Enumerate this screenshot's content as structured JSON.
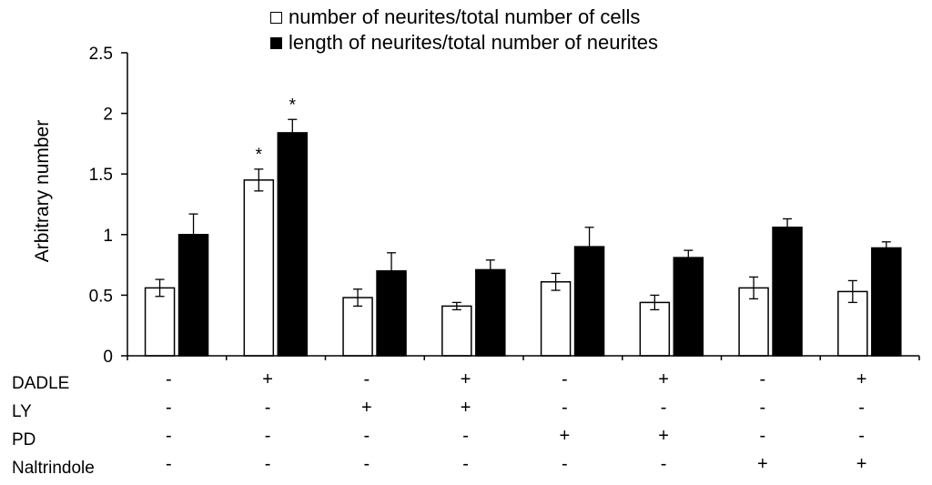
{
  "chart_data": {
    "type": "bar",
    "ylabel": "Arbitrary number",
    "ylim": [
      0,
      2.5
    ],
    "yticks": [
      "0",
      "0.5",
      "1",
      "1.5",
      "2",
      "2.5"
    ],
    "ytick_values": [
      0,
      0.5,
      1,
      1.5,
      2,
      2.5
    ],
    "legend_position": "top",
    "series": [
      {
        "name": "number of neurites/total number of cells",
        "fill": "#ffffff",
        "values": [
          0.56,
          1.45,
          0.48,
          0.41,
          0.61,
          0.44,
          0.56,
          0.53
        ],
        "errors": [
          0.07,
          0.09,
          0.07,
          0.03,
          0.07,
          0.06,
          0.09,
          0.09
        ],
        "stars": [
          "",
          "*",
          "",
          "",
          "",
          "",
          "",
          ""
        ]
      },
      {
        "name": "length of neurites/total number of neurites",
        "fill": "#000000",
        "values": [
          1.0,
          1.84,
          0.7,
          0.71,
          0.9,
          0.81,
          1.06,
          0.89
        ],
        "errors": [
          0.17,
          0.11,
          0.15,
          0.08,
          0.16,
          0.06,
          0.07,
          0.05
        ],
        "stars": [
          "",
          "*",
          "",
          "",
          "",
          "",
          "",
          ""
        ]
      }
    ],
    "treatment_table": {
      "rows": [
        {
          "label": "DADLE",
          "values": [
            "-",
            "+",
            "-",
            "+",
            "-",
            "+",
            "-",
            "+"
          ]
        },
        {
          "label": "LY",
          "values": [
            "-",
            "-",
            "+",
            "+",
            "-",
            "-",
            "-",
            "-"
          ]
        },
        {
          "label": "PD",
          "values": [
            "-",
            "-",
            "-",
            "-",
            "+",
            "+",
            "-",
            "-"
          ]
        },
        {
          "label": "Naltrindole",
          "values": [
            "-",
            "-",
            "-",
            "-",
            "-",
            "-",
            "+",
            "+"
          ]
        }
      ]
    }
  }
}
